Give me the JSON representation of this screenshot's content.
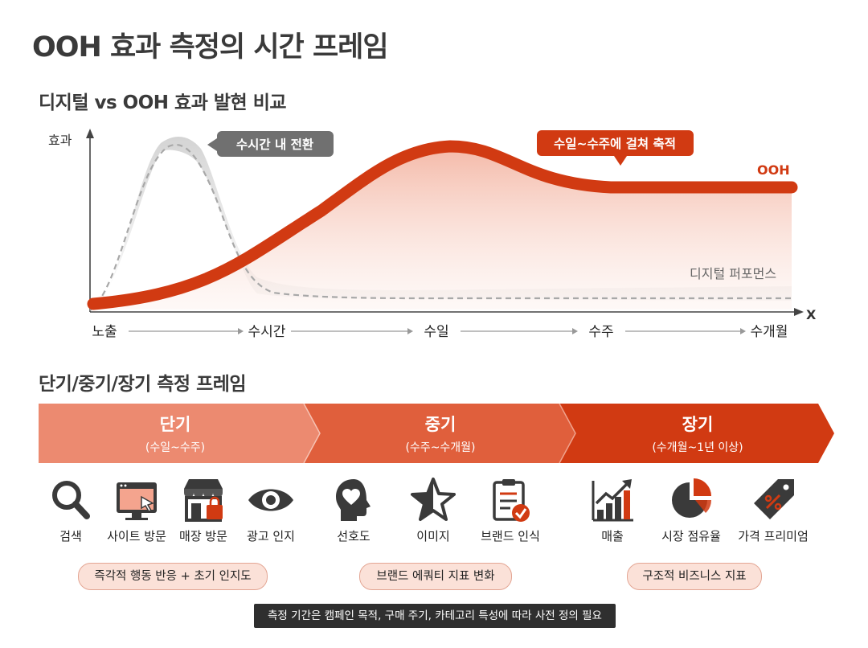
{
  "title": "OOH 효과 측정의 시간 프레임",
  "section1_title": "디지털 vs OOH 효과 발현 비교",
  "section2_title": "단기/중기/장기 측정 프레임",
  "chart_data": {
    "type": "line",
    "ylabel": "효과",
    "xlabel": "X",
    "categories": [
      "노출",
      "수시간",
      "수일",
      "수주",
      "수개월"
    ],
    "series": [
      {
        "name": "디지털 퍼포먼스",
        "color": "#b0b0b0",
        "style": "dashed",
        "values": [
          0.0,
          0.14,
          0.02,
          0.0,
          0.0
        ]
      },
      {
        "name": "OOH",
        "color": "#d13a12",
        "style": "solid",
        "values": [
          0.0,
          0.25,
          0.73,
          0.62,
          0.62
        ]
      }
    ],
    "annotations": [
      {
        "text": "수시간 내 전환",
        "target": "디지털 퍼포먼스"
      },
      {
        "text": "수일~수주에 걸쳐 축적",
        "target": "OOH"
      }
    ]
  },
  "phases": [
    {
      "name": "단기",
      "range": "(수일~수주)",
      "color": "#ec8a70"
    },
    {
      "name": "중기",
      "range": "(수주~수개월)",
      "color": "#e05f3c"
    },
    {
      "name": "장기",
      "range": "(수개월~1년 이상)",
      "color": "#d13a12"
    }
  ],
  "items": [
    {
      "label": "검색",
      "icon": "search-icon"
    },
    {
      "label": "사이트 방문",
      "icon": "website-icon"
    },
    {
      "label": "매장 방문",
      "icon": "store-icon"
    },
    {
      "label": "광고 인지",
      "icon": "eye-icon"
    },
    {
      "label": "선호도",
      "icon": "heart-head-icon"
    },
    {
      "label": "이미지",
      "icon": "star-icon"
    },
    {
      "label": "브랜드 인식",
      "icon": "clipboard-check-icon"
    },
    {
      "label": "매출",
      "icon": "bar-chart-up-icon"
    },
    {
      "label": "시장 점유율",
      "icon": "pie-chart-icon"
    },
    {
      "label": "가격 프리미엄",
      "icon": "price-tag-icon"
    }
  ],
  "pills": [
    "즉각적 행동 반응 + 초기 인지도",
    "브랜드 에쿼티 지표 변화",
    "구조적 비즈니스 지표"
  ],
  "note": "측정 기간은 캠페인 목적, 구매 주기, 카테고리 특성에 따라 사전 정의 필요",
  "colors": {
    "accent": "#d13a12",
    "gray": "#b0b0b0",
    "dark": "#3a3a3a"
  }
}
